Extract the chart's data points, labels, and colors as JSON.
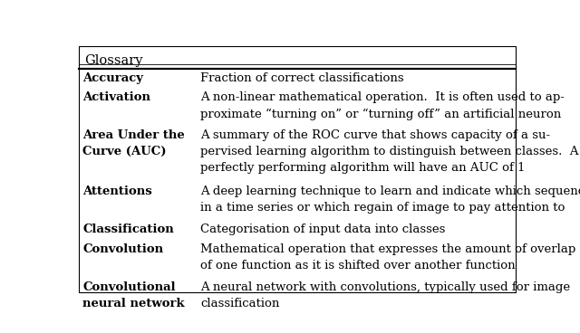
{
  "title": "Glossary",
  "bg_color": "#ffffff",
  "text_color": "#000000",
  "title_fontsize": 10.5,
  "body_fontsize": 9.5,
  "rows": [
    {
      "term": "Accuracy",
      "definition": "Fraction of correct classifications",
      "term_lines": 1,
      "def_lines": 1
    },
    {
      "term": "Activation",
      "definition": "A non-linear mathematical operation.  It is often used to ap-\nproximate “turning on” or “turning off” an artificial neuron",
      "term_lines": 1,
      "def_lines": 2
    },
    {
      "term": "Area Under the\nCurve (AUC)",
      "definition": "A summary of the ROC curve that shows capacity of a su-\npervised learning algorithm to distinguish between classes.  A\nperfectly performing algorithm will have an AUC of 1",
      "term_lines": 2,
      "def_lines": 3
    },
    {
      "term": "Attentions",
      "definition": "A deep learning technique to learn and indicate which sequence\nin a time series or which regain of image to pay attention to",
      "term_lines": 1,
      "def_lines": 2
    },
    {
      "term": "Classification",
      "definition": "Categorisation of input data into classes",
      "term_lines": 1,
      "def_lines": 1
    },
    {
      "term": "Convolution",
      "definition": "Mathematical operation that expresses the amount of overlap\nof one function as it is shifted over another function",
      "term_lines": 1,
      "def_lines": 2
    },
    {
      "term": "Convolutional\nneural network",
      "definition": "A neural network with convolutions, typically used for image\nclassification",
      "term_lines": 2,
      "def_lines": 2
    }
  ]
}
